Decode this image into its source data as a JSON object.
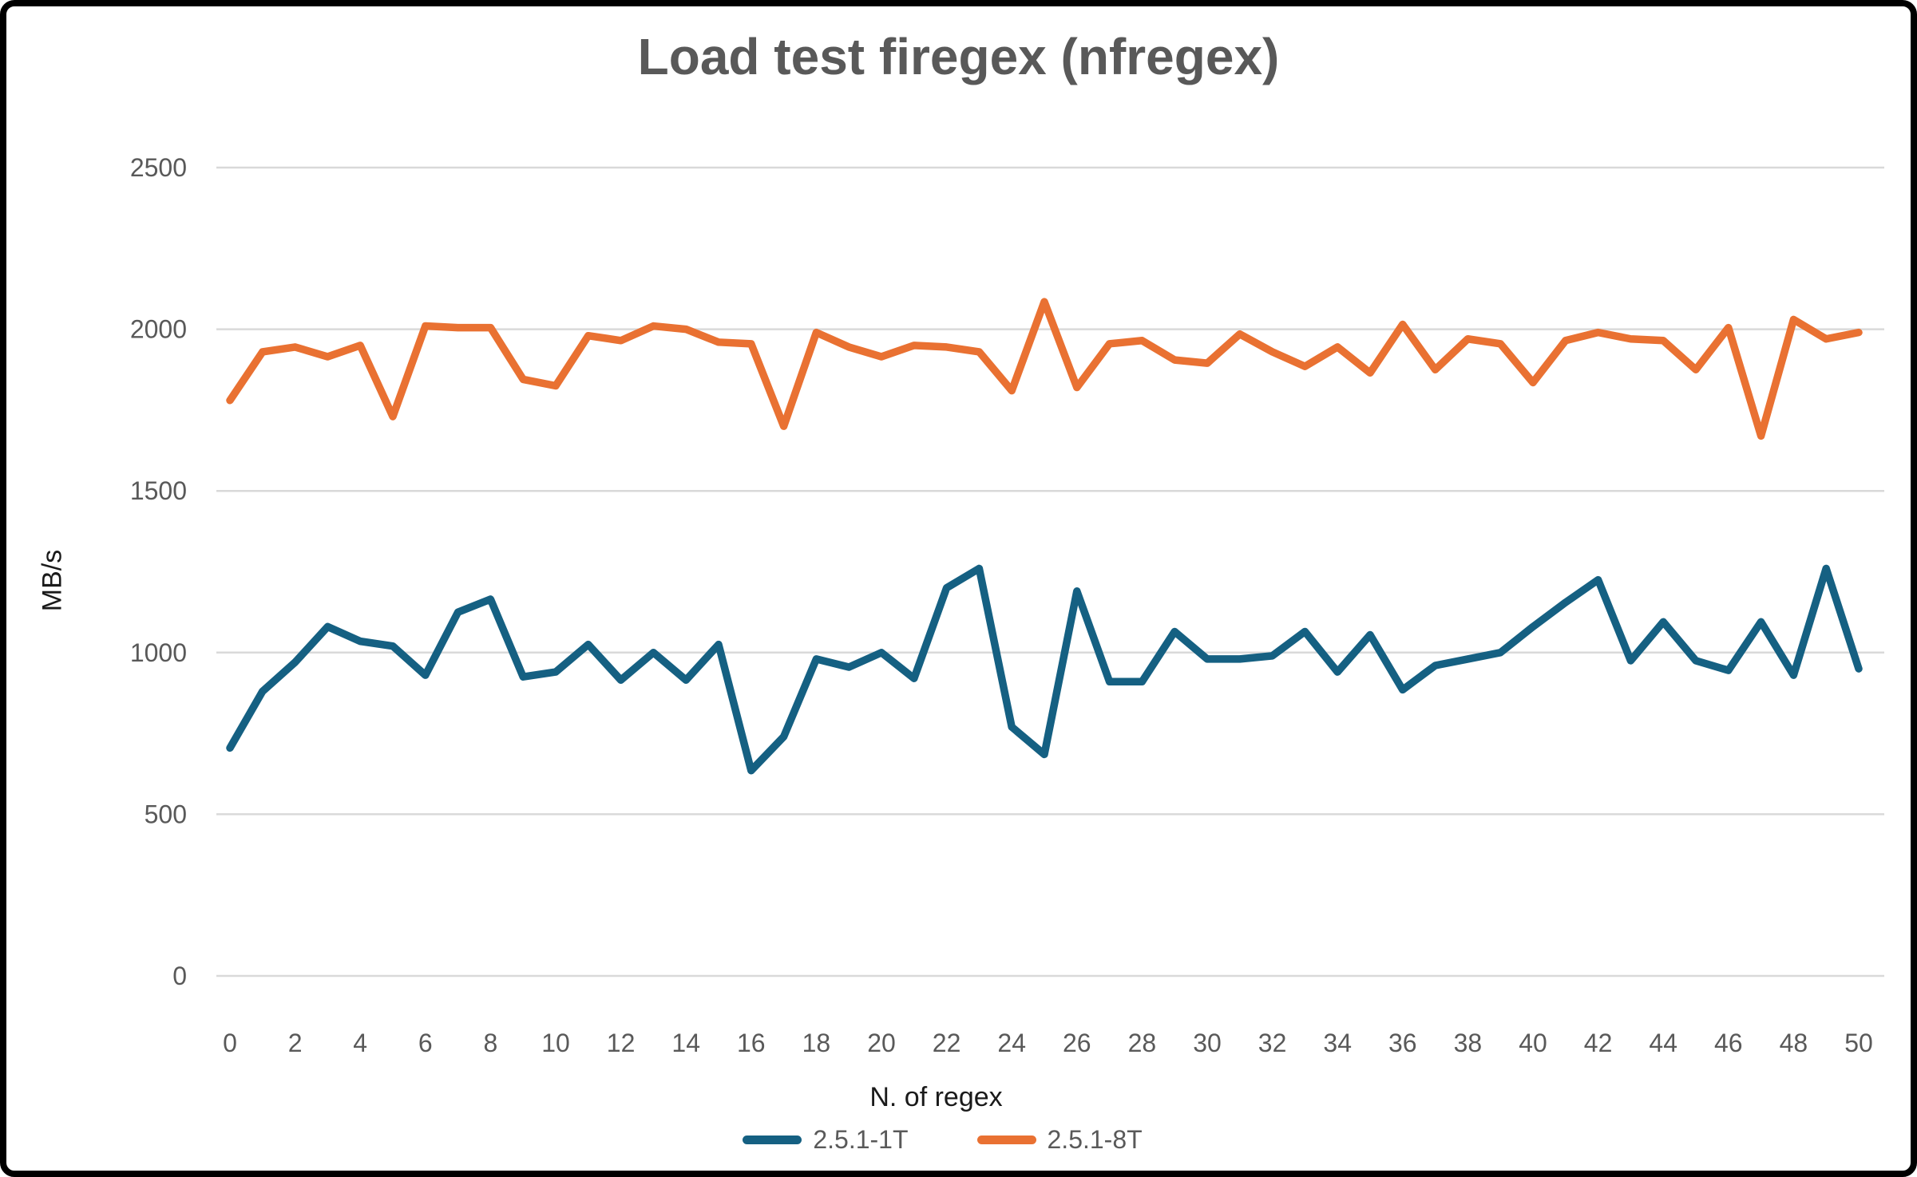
{
  "window": {
    "background": "#ffffff",
    "frame_border_color": "#000000"
  },
  "colors": {
    "title_text": "#595959",
    "tick_text": "#595959",
    "axis_title_text": "#1a1a1a",
    "gridline": "#d9d9d9"
  },
  "chart_data": {
    "type": "line",
    "title": "Load test firegex (nfregex)",
    "xlabel": "N. of regex",
    "ylabel": "MB/s",
    "xlim": [
      0,
      50
    ],
    "ylim": [
      0,
      2500
    ],
    "grid": true,
    "legend_position": "bottom-center",
    "x": [
      0,
      1,
      2,
      3,
      4,
      5,
      6,
      7,
      8,
      9,
      10,
      11,
      12,
      13,
      14,
      15,
      16,
      17,
      18,
      19,
      20,
      21,
      22,
      23,
      24,
      25,
      26,
      27,
      28,
      29,
      30,
      31,
      32,
      33,
      34,
      35,
      36,
      37,
      38,
      39,
      40,
      41,
      42,
      43,
      44,
      45,
      46,
      47,
      48,
      49,
      50
    ],
    "x_tick_labels": [
      0,
      2,
      4,
      6,
      8,
      10,
      12,
      14,
      16,
      18,
      20,
      22,
      24,
      26,
      28,
      30,
      32,
      34,
      36,
      38,
      40,
      42,
      44,
      46,
      48,
      50
    ],
    "y_ticks": [
      0,
      500,
      1000,
      1500,
      2000,
      2500
    ],
    "series": [
      {
        "name": "2.5.1-1T",
        "color": "#156082",
        "values": [
          705,
          880,
          970,
          1080,
          1035,
          1020,
          930,
          1125,
          1165,
          925,
          940,
          1025,
          915,
          1000,
          915,
          1025,
          635,
          740,
          980,
          955,
          1000,
          920,
          1200,
          1260,
          770,
          685,
          1190,
          910,
          910,
          1065,
          980,
          980,
          990,
          1065,
          940,
          1055,
          885,
          960,
          980,
          1000,
          1080,
          1155,
          1225,
          975,
          1095,
          975,
          945,
          1095,
          930,
          1260,
          950
        ]
      },
      {
        "name": "2.5.1-8T",
        "color": "#E97132",
        "values": [
          1780,
          1930,
          1945,
          1915,
          1950,
          1730,
          2010,
          2005,
          2005,
          1845,
          1825,
          1980,
          1965,
          2010,
          2000,
          1960,
          1955,
          1700,
          1990,
          1945,
          1915,
          1950,
          1945,
          1930,
          1810,
          2085,
          1820,
          1955,
          1965,
          1905,
          1895,
          1985,
          1930,
          1885,
          1945,
          1865,
          2015,
          1875,
          1970,
          1955,
          1835,
          1965,
          1990,
          1970,
          1965,
          1875,
          2005,
          1670,
          2030,
          1970,
          1990
        ]
      }
    ]
  }
}
